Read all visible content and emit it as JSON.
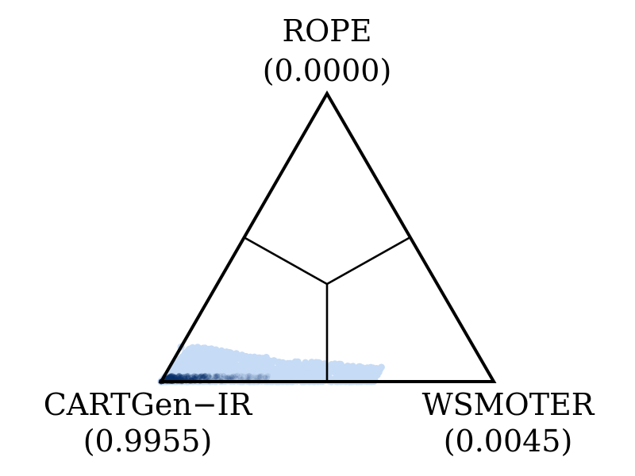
{
  "chart_data": {
    "type": "scatter",
    "subtype": "ternary-simplex",
    "title": "",
    "vertices": [
      {
        "name": "ROPE",
        "probability": "(0.0000)",
        "position": "top"
      },
      {
        "name": "CARTGen−IR",
        "probability": "(0.9955)",
        "position": "bottom-left"
      },
      {
        "name": "WSMOTER",
        "probability": "(0.0045)",
        "position": "bottom-right"
      }
    ],
    "region_lines": true,
    "point_color": "#c6dbf5",
    "density_color": "#08306b",
    "sample_points": [
      {
        "a": 0.12,
        "b": 0.88,
        "c": 0.0
      },
      {
        "a": 0.09,
        "b": 0.86,
        "c": 0.05
      },
      {
        "a": 0.1,
        "b": 0.79,
        "c": 0.11
      },
      {
        "a": 0.08,
        "b": 0.73,
        "c": 0.19
      },
      {
        "a": 0.07,
        "b": 0.69,
        "c": 0.24
      },
      {
        "a": 0.06,
        "b": 0.64,
        "c": 0.3
      },
      {
        "a": 0.05,
        "b": 0.62,
        "c": 0.33
      },
      {
        "a": 0.04,
        "b": 0.57,
        "c": 0.39
      },
      {
        "a": 0.11,
        "b": 0.78,
        "c": 0.11
      },
      {
        "a": 0.07,
        "b": 0.83,
        "c": 0.1
      },
      {
        "a": 0.05,
        "b": 0.78,
        "c": 0.17
      },
      {
        "a": 0.03,
        "b": 0.56,
        "c": 0.41
      }
    ]
  }
}
